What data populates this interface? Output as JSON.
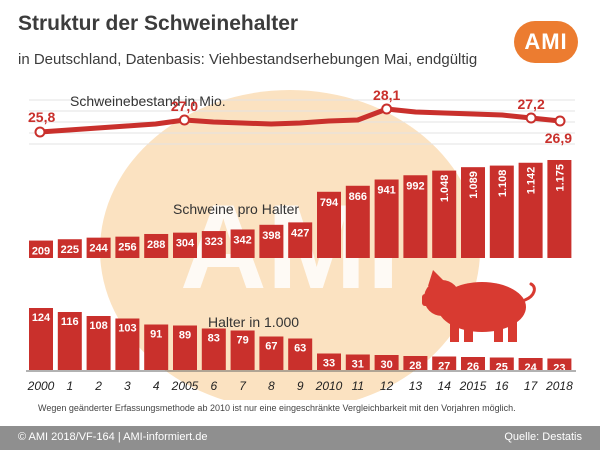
{
  "header": {
    "title": "Struktur der Schweinehalter",
    "subtitle": "in Deutschland, Datenbasis: Viehbestandserhebungen Mai, endgültig",
    "logo_text": "AMI"
  },
  "chart_data": [
    {
      "type": "line",
      "title": "Schweinebestand in Mio.",
      "x": [
        "2000",
        "1",
        "2",
        "3",
        "4",
        "2005",
        "6",
        "7",
        "8",
        "9",
        "2010",
        "11",
        "12",
        "13",
        "14",
        "2015",
        "16",
        "17",
        "2018"
      ],
      "values": [
        25.8,
        26.0,
        26.2,
        26.4,
        26.6,
        27.0,
        26.8,
        26.7,
        26.6,
        26.7,
        26.9,
        27.0,
        28.1,
        27.8,
        27.7,
        27.6,
        27.5,
        27.2,
        26.9
      ],
      "labeled_points": [
        {
          "index": 0,
          "label": "25,8"
        },
        {
          "index": 5,
          "label": "27,0"
        },
        {
          "index": 12,
          "label": "28,1"
        },
        {
          "index": 17,
          "label": "27,2"
        },
        {
          "index": 18,
          "label": "26,9"
        }
      ],
      "ylim": [
        21.5,
        32
      ],
      "color": "#c9302c"
    },
    {
      "type": "bar",
      "title": "Schweine pro Halter",
      "categories": [
        "2000",
        "1",
        "2",
        "3",
        "4",
        "2005",
        "6",
        "7",
        "8",
        "9",
        "2010",
        "11",
        "12",
        "13",
        "14",
        "2015",
        "16",
        "17",
        "2018"
      ],
      "values": [
        209,
        225,
        244,
        256,
        288,
        304,
        323,
        342,
        398,
        427,
        794,
        866,
        941,
        992,
        1048,
        1089,
        1108,
        1142,
        1175
      ],
      "labels": [
        "209",
        "225",
        "244",
        "256",
        "288",
        "304",
        "323",
        "342",
        "398",
        "427",
        "794",
        "866",
        "941",
        "992",
        "1.048",
        "1.089",
        "1.108",
        "1.142",
        "1.175"
      ],
      "ylim": [
        0,
        1175
      ],
      "color": "#c9302c"
    },
    {
      "type": "bar",
      "title": "Halter in 1.000",
      "categories": [
        "2000",
        "1",
        "2",
        "3",
        "4",
        "2005",
        "6",
        "7",
        "8",
        "9",
        "2010",
        "11",
        "12",
        "13",
        "14",
        "2015",
        "16",
        "17",
        "2018"
      ],
      "values": [
        124,
        116,
        108,
        103,
        91,
        89,
        83,
        79,
        67,
        63,
        33,
        31,
        30,
        28,
        27,
        26,
        25,
        24,
        23
      ],
      "labels": [
        "124",
        "116",
        "108",
        "103",
        "91",
        "89",
        "83",
        "79",
        "67",
        "63",
        "33",
        "31",
        "30",
        "28",
        "27",
        "26",
        "25",
        "24",
        "23"
      ],
      "ylim": [
        0,
        124
      ],
      "color": "#c9302c"
    }
  ],
  "x_axis_labels": [
    "2000",
    "1",
    "2",
    "3",
    "4",
    "2005",
    "6",
    "7",
    "8",
    "9",
    "2010",
    "11",
    "12",
    "13",
    "14",
    "2015",
    "16",
    "17",
    "2018"
  ],
  "watermark": {
    "text": "AMI",
    "color": "#f3b05a"
  },
  "pig_icon": "pig-icon",
  "note": "Wegen geänderter Erfassungsmethode ab 2010 ist nur eine eingeschränkte Vergleichbarkeit mit den Vorjahren möglich.",
  "footer": {
    "left": "© AMI 2018/VF-164 | AMI-informiert.de",
    "right": "Quelle: Destatis"
  },
  "colors": {
    "accent": "#c9302c",
    "logo": "#ec7c30",
    "footer": "#8f8f8f"
  }
}
